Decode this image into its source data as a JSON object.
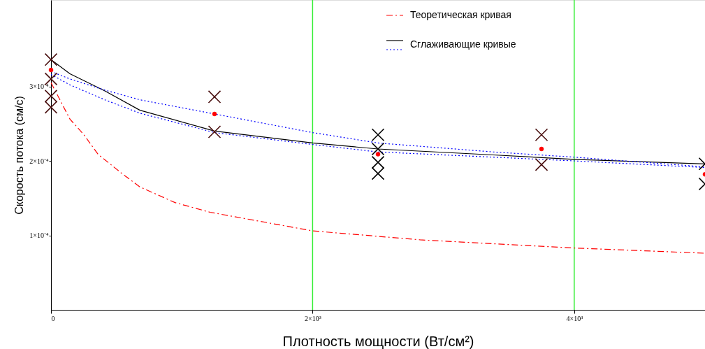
{
  "chart_data": {
    "type": "scatter",
    "xlabel": "Плотность мощности (Вт/см²)",
    "ylabel": "Скорость потока (см/с)",
    "xlim": [
      0,
      5000
    ],
    "ylim": [
      0,
      0.000416
    ],
    "xticks": [
      0,
      {
        "value": 2000,
        "label": "2×10³"
      },
      {
        "value": 4000,
        "label": "4×10³"
      }
    ],
    "yticks": [
      {
        "value": 0.0001,
        "label": "1×10⁻⁴"
      },
      {
        "value": 0.0002,
        "label": "2×10⁻⁴"
      },
      {
        "value": 0.0003,
        "label": "3×10⁻⁴"
      }
    ],
    "ref_lines": [
      {
        "axis": "x",
        "value": 2000,
        "color": "#33ee33"
      },
      {
        "axis": "x",
        "value": 4000,
        "color": "#33ee33"
      }
    ],
    "legend": "top right",
    "series": [
      {
        "name": "Теоретическая кривая",
        "type": "line",
        "line_style": "dashed",
        "marker": "none",
        "color": "#ff0000",
        "x": [
          0,
          145,
          252,
          359,
          535,
          680,
          948,
          1216,
          2000,
          2822,
          4000,
          5000
        ],
        "values": [
          0.000305,
          0.000256,
          0.000235,
          0.000209,
          0.000184,
          0.000165,
          0.000144,
          0.000131,
          0.000106,
          9.4e-05,
          8.3e-05,
          7.6e-05
        ]
      },
      {
        "name": "Сглаживающие кривые",
        "type": "line",
        "line_style": "solid",
        "marker": "none",
        "color": "#000000",
        "x": [
          0,
          145,
          412,
          680,
          1250,
          2000,
          2500,
          3380,
          4000,
          5000
        ],
        "values": [
          0.000336,
          0.000317,
          0.000294,
          0.000268,
          0.00024,
          0.000224,
          0.000216,
          0.000208,
          0.000202,
          0.000196
        ]
      },
      {
        "type": "line",
        "line_style": "dotted",
        "marker": "none",
        "color": "#0000ff",
        "x": [
          0,
          145,
          412,
          680,
          1250,
          2000,
          2500,
          3380,
          4000,
          5000
        ],
        "values": [
          0.00032,
          0.00031,
          0.000295,
          0.000282,
          0.000263,
          0.000238,
          0.000224,
          0.000212,
          0.000205,
          0.000192
        ]
      },
      {
        "type": "line",
        "line_style": "dotted",
        "marker": "none",
        "color": "#0000ff",
        "x": [
          0,
          145,
          412,
          680,
          1250,
          2000,
          2500,
          3380,
          4000,
          5000
        ],
        "values": [
          0.000316,
          0.000302,
          0.000282,
          0.000264,
          0.000238,
          0.000222,
          0.000212,
          0.000205,
          0.0002,
          0.000191
        ]
      },
      {
        "marker": "cross",
        "color": "#4a1010",
        "x": [
          0,
          0,
          0,
          0,
          1250,
          1250,
          3750,
          3750
        ],
        "values": [
          0.000336,
          0.00031,
          0.000287,
          0.000272,
          0.000286,
          0.000239,
          0.000235,
          0.000195
        ]
      },
      {
        "marker": "cross",
        "color": "#000000",
        "x": [
          2500,
          2500,
          2500,
          2500,
          5000,
          5000
        ],
        "values": [
          0.000235,
          0.000216,
          0.000198,
          0.000183,
          0.000196,
          0.000169
        ]
      },
      {
        "marker": "circle",
        "color": "#ff0000",
        "x": [
          0,
          1250,
          2500,
          3750,
          5000
        ],
        "values": [
          0.000322,
          0.000263,
          0.000209,
          0.000216,
          0.000182
        ]
      }
    ]
  }
}
